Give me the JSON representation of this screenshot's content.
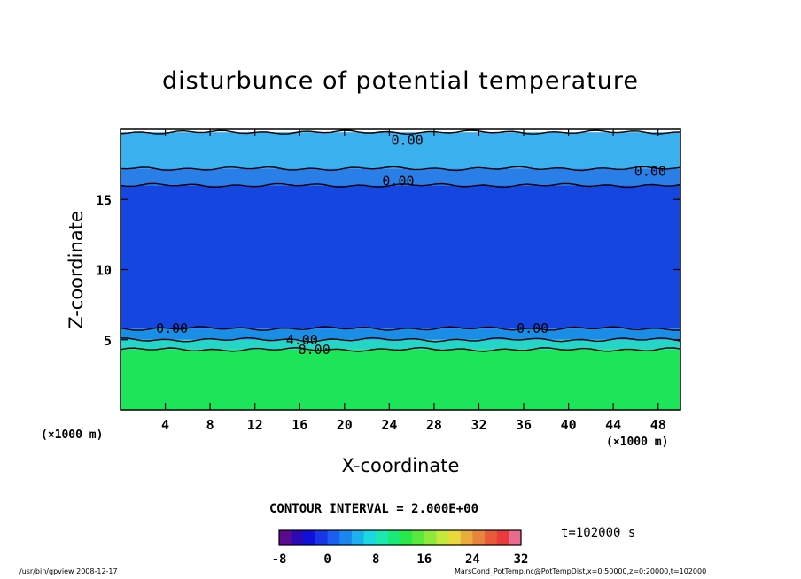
{
  "chart_data": {
    "type": "heatmap",
    "title": "disturbunce of potential temperature",
    "xlabel": "X-coordinate",
    "ylabel": "Z-coordinate",
    "x_unit_label": "(×1000 m)",
    "xlim": [
      0,
      50
    ],
    "ylim": [
      0,
      20
    ],
    "x_ticks": [
      4,
      8,
      12,
      16,
      20,
      24,
      28,
      32,
      36,
      40,
      44,
      48
    ],
    "y_ticks": [
      5,
      10,
      15
    ],
    "layers": [
      {
        "z_from": 0,
        "z_to": 4.3,
        "value_range": [
          8,
          10
        ],
        "color": "#1ce55a"
      },
      {
        "z_from": 4.3,
        "z_to": 5.0,
        "value_range": [
          4,
          8
        ],
        "color": "#24d5c8"
      },
      {
        "z_from": 5.0,
        "z_to": 5.8,
        "value_range": [
          0,
          4
        ],
        "color": "#1a8ee6"
      },
      {
        "z_from": 5.8,
        "z_to": 16.0,
        "value_range": [
          -6,
          -4
        ],
        "color": "#1546e0"
      },
      {
        "z_from": 16.0,
        "z_to": 17.2,
        "value_range": [
          -2,
          0
        ],
        "color": "#2a7ee8"
      },
      {
        "z_from": 17.2,
        "z_to": 19.8,
        "value_range": [
          0,
          2
        ],
        "color": "#3ab0ee"
      }
    ],
    "contour_labels": [
      {
        "text": "0.00",
        "x": 25.6,
        "z": 19.2
      },
      {
        "text": "0.00",
        "x": 47.3,
        "z": 17.0
      },
      {
        "text": "0.00",
        "x": 24.8,
        "z": 16.3
      },
      {
        "text": "0.00",
        "x": 4.6,
        "z": 5.8
      },
      {
        "text": "0.00",
        "x": 36.8,
        "z": 5.8
      },
      {
        "text": "4.00",
        "x": 16.2,
        "z": 5.0
      },
      {
        "text": "8.00",
        "x": 17.3,
        "z": 4.3
      }
    ],
    "contour_interval_text": "CONTOUR INTERVAL = 2.000E+00",
    "time_text": "t=102000 s",
    "colorbar": {
      "min": -8,
      "max": 32,
      "tick_labels": [
        "-8",
        "0",
        "8",
        "16",
        "24",
        "32"
      ],
      "colors": [
        "#5a0a8c",
        "#2a0ab4",
        "#1010d8",
        "#1836e6",
        "#1c5ef0",
        "#1c86f0",
        "#1cb0ec",
        "#1cd8e0",
        "#1ce8b0",
        "#1ce878",
        "#28e84c",
        "#5ae83c",
        "#90e83c",
        "#c4e83c",
        "#e8d83c",
        "#e8ac3c",
        "#e8843c",
        "#e85c3c",
        "#e83c3c",
        "#e86a8c"
      ]
    }
  },
  "footer": {
    "left": "/usr/bin/gpview   2008-12-17",
    "right": "MarsCond_PotTemp.nc@PotTempDist,x=0:50000,z=0:20000,t=102000"
  }
}
